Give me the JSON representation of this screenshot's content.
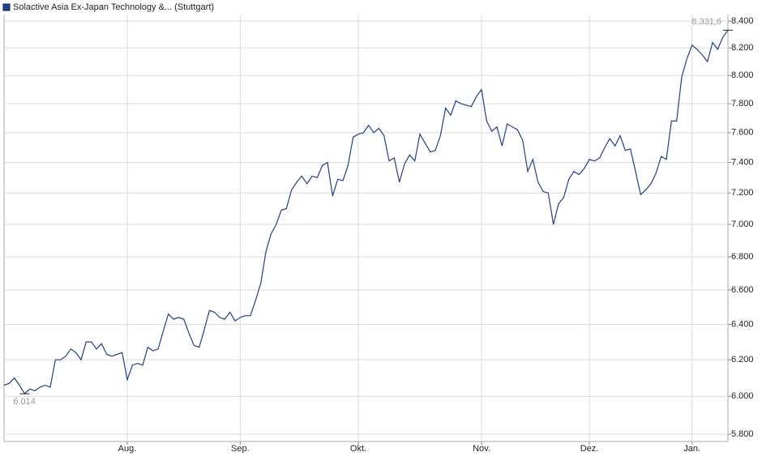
{
  "chart_data": {
    "type": "line",
    "legend": "Solactive Asia Ex-Japan Technology &... (Stuttgart)",
    "color": "#1f3f8f",
    "log_scale": true,
    "grid": true,
    "categories": [
      null,
      null,
      null,
      null,
      null,
      null,
      null,
      null,
      null,
      null,
      null,
      null,
      null,
      null,
      null,
      null,
      null,
      null,
      null,
      null,
      null,
      null,
      null,
      null,
      "Aug.",
      null,
      null,
      null,
      null,
      null,
      null,
      null,
      null,
      null,
      null,
      null,
      null,
      null,
      null,
      null,
      null,
      null,
      null,
      null,
      null,
      null,
      "Sep.",
      null,
      null,
      null,
      null,
      null,
      null,
      null,
      null,
      null,
      null,
      null,
      null,
      null,
      null,
      null,
      null,
      null,
      null,
      null,
      null,
      null,
      null,
      "Okt.",
      null,
      null,
      null,
      null,
      null,
      null,
      null,
      null,
      null,
      null,
      null,
      null,
      null,
      null,
      null,
      null,
      null,
      null,
      null,
      null,
      null,
      null,
      null,
      "Nov.",
      null,
      null,
      null,
      null,
      null,
      null,
      null,
      null,
      null,
      null,
      null,
      null,
      null,
      null,
      null,
      null,
      null,
      null,
      null,
      null,
      "Dez.",
      null,
      null,
      null,
      null,
      null,
      null,
      null,
      null,
      null,
      null,
      null,
      null,
      null,
      null,
      null,
      null,
      null,
      null,
      null,
      "Jan.",
      null,
      null,
      null,
      null,
      null,
      null,
      null
    ],
    "values": [
      6060,
      6070,
      6100,
      6060,
      6014,
      6040,
      6030,
      6050,
      6060,
      6050,
      6200,
      6200,
      6220,
      6260,
      6240,
      6200,
      6300,
      6300,
      6260,
      6290,
      6230,
      6220,
      6230,
      6240,
      6090,
      6170,
      6180,
      6170,
      6270,
      6250,
      6260,
      6360,
      6460,
      6430,
      6440,
      6430,
      6350,
      6280,
      6270,
      6370,
      6480,
      6470,
      6440,
      6430,
      6470,
      6420,
      6440,
      6450,
      6450,
      6540,
      6640,
      6830,
      6940,
      7000,
      7090,
      7100,
      7220,
      7270,
      7310,
      7260,
      7310,
      7300,
      7380,
      7400,
      7180,
      7290,
      7280,
      7380,
      7570,
      7590,
      7600,
      7650,
      7600,
      7630,
      7580,
      7410,
      7430,
      7270,
      7390,
      7450,
      7410,
      7590,
      7530,
      7470,
      7480,
      7580,
      7770,
      7720,
      7820,
      7800,
      7790,
      7780,
      7850,
      7900,
      7680,
      7610,
      7640,
      7510,
      7660,
      7640,
      7620,
      7550,
      7340,
      7420,
      7270,
      7210,
      7200,
      7000,
      7130,
      7170,
      7290,
      7340,
      7320,
      7360,
      7420,
      7410,
      7430,
      7500,
      7560,
      7510,
      7580,
      7480,
      7490,
      7340,
      7190,
      7220,
      7260,
      7330,
      7440,
      7420,
      7680,
      7680,
      7990,
      8120,
      8220,
      8190,
      8150,
      8100,
      8240,
      8190,
      8280,
      8331.6
    ],
    "max_label": "8.331,6",
    "min_label": "6.014",
    "ylim": [
      5800,
      8400
    ],
    "yticks": [
      {
        "value": 5800,
        "label": "5.800"
      },
      {
        "value": 6000,
        "label": "6.000"
      },
      {
        "value": 6200,
        "label": "6.200"
      },
      {
        "value": 6400,
        "label": "6.400"
      },
      {
        "value": 6600,
        "label": "6.600"
      },
      {
        "value": 6800,
        "label": "6.800"
      },
      {
        "value": 7000,
        "label": "7.000"
      },
      {
        "value": 7200,
        "label": "7.200"
      },
      {
        "value": 7400,
        "label": "7.400"
      },
      {
        "value": 7600,
        "label": "7.600"
      },
      {
        "value": 7800,
        "label": "7.800"
      },
      {
        "value": 8000,
        "label": "8.000"
      },
      {
        "value": 8200,
        "label": "8.200"
      },
      {
        "value": 8400,
        "label": "8.400"
      }
    ]
  }
}
